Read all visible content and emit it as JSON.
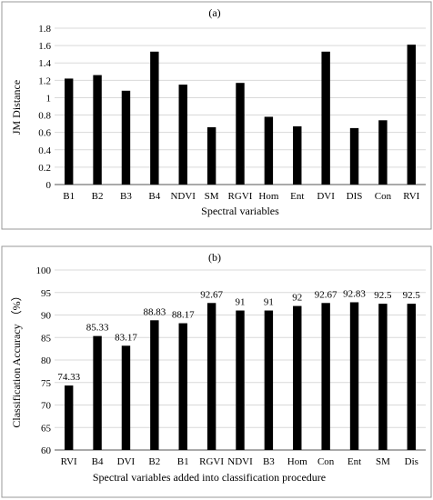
{
  "chart_data": [
    {
      "type": "bar",
      "title": "(a)",
      "xlabel": "Spectral variables",
      "ylabel": "JM Distance",
      "categories": [
        "B1",
        "B2",
        "B3",
        "B4",
        "NDVI",
        "SM",
        "RGVI",
        "Hom",
        "Ent",
        "DVI",
        "DIS",
        "Con",
        "RVI"
      ],
      "values": [
        1.22,
        1.26,
        1.08,
        1.53,
        1.15,
        0.66,
        1.17,
        0.78,
        0.67,
        1.53,
        0.65,
        0.74,
        1.61
      ],
      "yticks": [
        "0",
        "0.2",
        "0.4",
        "0.6",
        "0.8",
        "1",
        "1.2",
        "1.4",
        "1.6",
        "1.8"
      ],
      "ylim": [
        0,
        1.8
      ],
      "grid": true,
      "bar_color": "#000000"
    },
    {
      "type": "bar",
      "title": "(b)",
      "xlabel": "Spectral variables added into classification procedure",
      "ylabel": "Classification Accuracy （%）",
      "categories": [
        "RVI",
        "B4",
        "DVI",
        "B2",
        "B1",
        "RGVI",
        "NDVI",
        "B3",
        "Hom",
        "Con",
        "Ent",
        "SM",
        "Dis"
      ],
      "values": [
        74.33,
        85.33,
        83.17,
        88.83,
        88.17,
        92.67,
        91,
        91,
        92,
        92.67,
        92.83,
        92.5,
        92.5
      ],
      "data_labels": [
        "74.33",
        "85.33",
        "83.17",
        "88.83",
        "88.17",
        "92.67",
        "91",
        "91",
        "92",
        "92.67",
        "92.83",
        "92.5",
        "92.5"
      ],
      "yticks": [
        "60",
        "65",
        "70",
        "75",
        "80",
        "85",
        "90",
        "95",
        "100"
      ],
      "ylim": [
        60,
        100
      ],
      "grid": true,
      "bar_color": "#000000"
    }
  ]
}
